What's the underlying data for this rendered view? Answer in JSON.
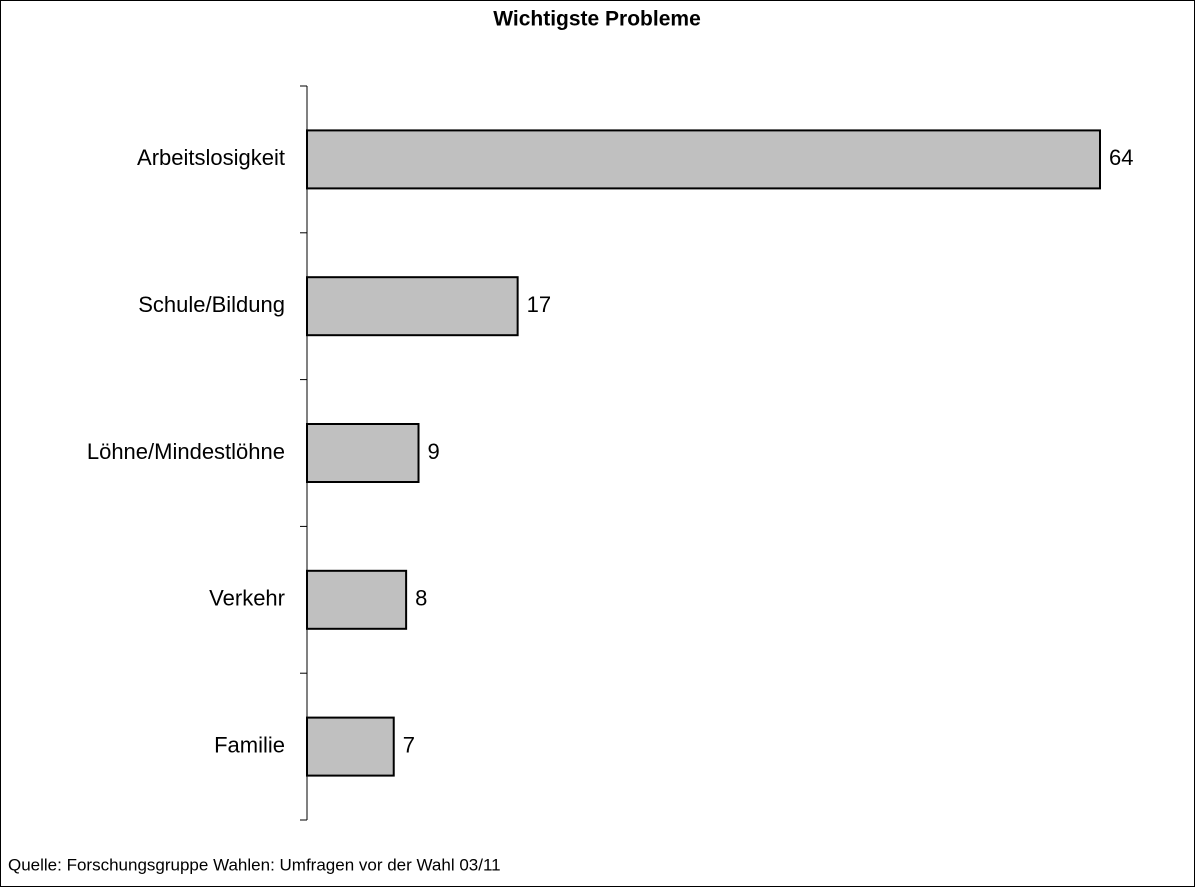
{
  "chart_data": {
    "type": "barh",
    "title": "Wichtigste Probleme",
    "categories": [
      "Arbeitslosigkeit",
      "Schule/Bildung",
      "Löhne/Mindestlöhne",
      "Verkehr",
      "Familie"
    ],
    "values": [
      64,
      17,
      9,
      8,
      7
    ],
    "color": "#c0c0c0",
    "source": "Quelle: Forschungsgruppe Wahlen: Umfragen vor der Wahl 03/11"
  }
}
